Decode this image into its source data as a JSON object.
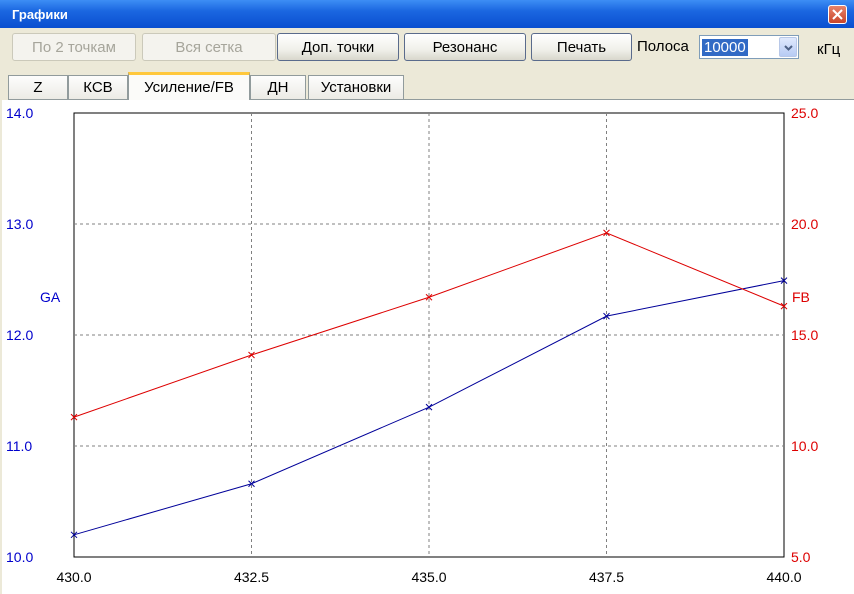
{
  "window": {
    "title": "Графики"
  },
  "toolbar": {
    "by_two_points": "По 2 точкам",
    "whole_grid": "Вся сетка",
    "extra_points": "Доп. точки",
    "resonance": "Резонанс",
    "print": "Печать",
    "band_label": "Полоса",
    "band_value": "10000",
    "band_unit": "кГц"
  },
  "tabs": [
    {
      "label": "Z"
    },
    {
      "label": "КСВ"
    },
    {
      "label": "Усиление/FB",
      "active": true
    },
    {
      "label": "ДН"
    },
    {
      "label": "Установки"
    }
  ],
  "chart_data": {
    "type": "line",
    "x": [
      430.0,
      432.5,
      435.0,
      437.5,
      440.0
    ],
    "x_ticks": [
      "430.0",
      "432.5",
      "435.0",
      "437.5",
      "440.0"
    ],
    "xlim": [
      430.0,
      440.0
    ],
    "left_axis": {
      "label": "GA",
      "ylim": [
        10.0,
        14.0
      ],
      "ticks": [
        "10.0",
        "11.0",
        "12.0",
        "13.0",
        "14.0"
      ],
      "color": "#0000cc"
    },
    "right_axis": {
      "label": "FB",
      "ylim": [
        5.0,
        25.0
      ],
      "ticks": [
        "5.0",
        "10.0",
        "15.0",
        "20.0",
        "25.0"
      ],
      "color": "#dd0000"
    },
    "series": [
      {
        "name": "GA",
        "axis": "left",
        "color": "#000099",
        "values": [
          10.2,
          10.66,
          11.35,
          12.17,
          12.49
        ]
      },
      {
        "name": "FB",
        "axis": "right",
        "color": "#dd0000",
        "values": [
          11.3,
          14.1,
          16.7,
          19.6,
          16.3
        ]
      }
    ],
    "grid": true
  }
}
